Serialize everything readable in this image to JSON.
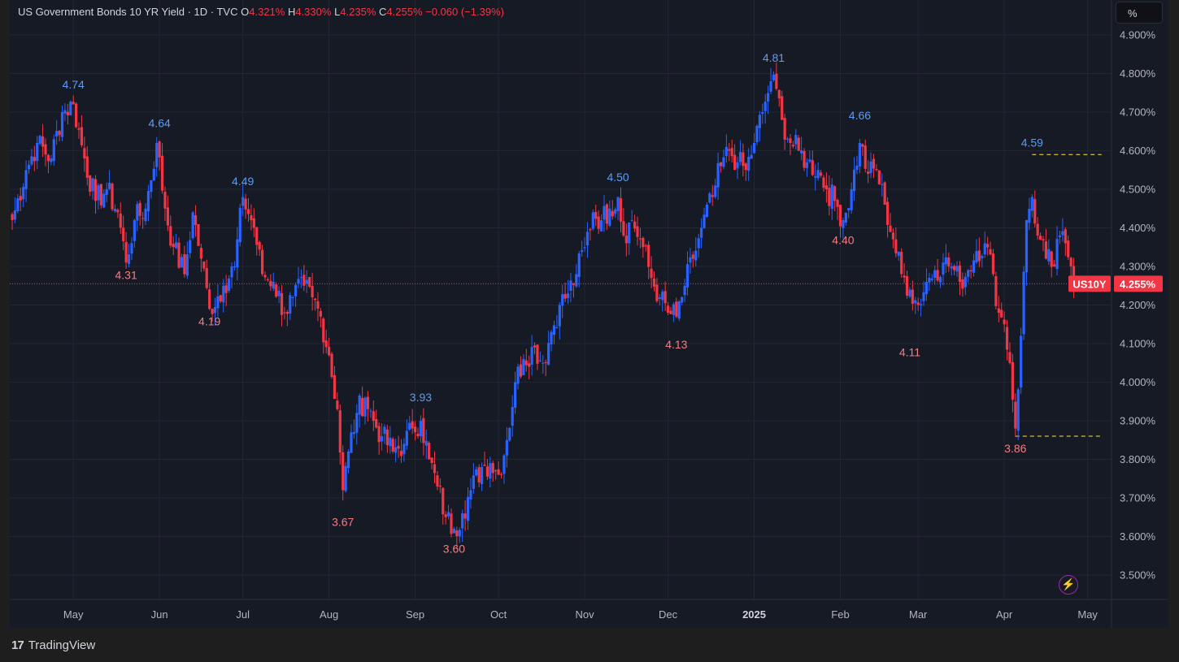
{
  "legend": {
    "title": "US Government Bonds 10 YR Yield · 1D · TVC",
    "o_label": "O",
    "o_value": "4.321%",
    "h_label": "H",
    "h_value": "4.330%",
    "l_label": "L",
    "l_value": "4.235%",
    "c_label": "C",
    "c_value": "4.255%",
    "change": "−0.060 (−1.39%)"
  },
  "unit_button": "%",
  "brand": {
    "name": "TradingView",
    "mark": "17"
  },
  "bolt_icon": "lightning-icon",
  "colors": {
    "up": "#2962ff",
    "down": "#f23645",
    "background": "#161a25",
    "grid": "#232632",
    "text": "#b2b5be",
    "dashed": "#ffeb3b"
  },
  "chart_data": {
    "type": "candlestick",
    "symbol": "US10Y",
    "last_price": "4.255%",
    "last_value": 4.255,
    "ylim": [
      3.45,
      4.95
    ],
    "y_ticks": [
      "4.900%",
      "4.800%",
      "4.700%",
      "4.600%",
      "4.500%",
      "4.400%",
      "4.300%",
      "4.200%",
      "4.100%",
      "4.000%",
      "3.900%",
      "3.800%",
      "3.700%",
      "3.600%",
      "3.500%"
    ],
    "y_tick_values": [
      4.9,
      4.8,
      4.7,
      4.6,
      4.5,
      4.4,
      4.3,
      4.2,
      4.1,
      4.0,
      3.9,
      3.8,
      3.7,
      3.6,
      3.5
    ],
    "x_ticks": [
      {
        "label": "May",
        "day": 22
      },
      {
        "label": "Jun",
        "day": 53
      },
      {
        "label": "Jul",
        "day": 83
      },
      {
        "label": "Aug",
        "day": 114
      },
      {
        "label": "Sep",
        "day": 145
      },
      {
        "label": "Oct",
        "day": 175
      },
      {
        "label": "Nov",
        "day": 206
      },
      {
        "label": "Dec",
        "day": 236
      },
      {
        "label": "2025",
        "day": 267,
        "bold": true
      },
      {
        "label": "Feb",
        "day": 298
      },
      {
        "label": "Mar",
        "day": 326
      },
      {
        "label": "Apr",
        "day": 357
      },
      {
        "label": "May",
        "day": 387
      }
    ],
    "x_range": [
      0,
      397
    ],
    "anchors": [
      [
        0,
        4.42
      ],
      [
        5,
        4.55
      ],
      [
        9,
        4.62
      ],
      [
        14,
        4.58
      ],
      [
        18,
        4.7
      ],
      [
        22,
        4.72
      ],
      [
        26,
        4.58
      ],
      [
        30,
        4.47
      ],
      [
        34,
        4.5
      ],
      [
        38,
        4.44
      ],
      [
        41,
        4.31
      ],
      [
        44,
        4.42
      ],
      [
        48,
        4.45
      ],
      [
        52,
        4.62
      ],
      [
        55,
        4.45
      ],
      [
        58,
        4.35
      ],
      [
        62,
        4.28
      ],
      [
        65,
        4.44
      ],
      [
        68,
        4.32
      ],
      [
        71,
        4.19
      ],
      [
        76,
        4.25
      ],
      [
        80,
        4.3
      ],
      [
        83,
        4.48
      ],
      [
        87,
        4.4
      ],
      [
        90,
        4.28
      ],
      [
        94,
        4.26
      ],
      [
        98,
        4.18
      ],
      [
        101,
        4.22
      ],
      [
        105,
        4.25
      ],
      [
        108,
        4.22
      ],
      [
        111,
        4.17
      ],
      [
        114,
        4.07
      ],
      [
        117,
        3.93
      ],
      [
        119,
        3.72
      ],
      [
        121,
        3.82
      ],
      [
        124,
        3.92
      ],
      [
        127,
        3.96
      ],
      [
        130,
        3.9
      ],
      [
        133,
        3.86
      ],
      [
        137,
        3.82
      ],
      [
        141,
        3.84
      ],
      [
        144,
        3.88
      ],
      [
        147,
        3.9
      ],
      [
        150,
        3.8
      ],
      [
        153,
        3.73
      ],
      [
        156,
        3.65
      ],
      [
        159,
        3.62
      ],
      [
        162,
        3.66
      ],
      [
        165,
        3.72
      ],
      [
        169,
        3.78
      ],
      [
        172,
        3.79
      ],
      [
        175,
        3.76
      ],
      [
        178,
        3.85
      ],
      [
        181,
        4.0
      ],
      [
        184,
        4.06
      ],
      [
        188,
        4.09
      ],
      [
        191,
        4.05
      ],
      [
        194,
        4.13
      ],
      [
        197,
        4.2
      ],
      [
        200,
        4.23
      ],
      [
        203,
        4.28
      ],
      [
        206,
        4.35
      ],
      [
        209,
        4.44
      ],
      [
        212,
        4.42
      ],
      [
        215,
        4.45
      ],
      [
        218,
        4.48
      ],
      [
        220,
        4.38
      ],
      [
        223,
        4.42
      ],
      [
        227,
        4.35
      ],
      [
        230,
        4.27
      ],
      [
        233,
        4.22
      ],
      [
        236,
        4.18
      ],
      [
        239,
        4.17
      ],
      [
        242,
        4.25
      ],
      [
        245,
        4.32
      ],
      [
        248,
        4.4
      ],
      [
        252,
        4.48
      ],
      [
        255,
        4.56
      ],
      [
        258,
        4.6
      ],
      [
        261,
        4.57
      ],
      [
        264,
        4.55
      ],
      [
        267,
        4.62
      ],
      [
        270,
        4.7
      ],
      [
        273,
        4.78
      ],
      [
        275,
        4.76
      ],
      [
        277,
        4.68
      ],
      [
        280,
        4.62
      ],
      [
        283,
        4.6
      ],
      [
        286,
        4.57
      ],
      [
        290,
        4.55
      ],
      [
        293,
        4.5
      ],
      [
        296,
        4.47
      ],
      [
        299,
        4.42
      ],
      [
        302,
        4.5
      ],
      [
        305,
        4.62
      ],
      [
        308,
        4.54
      ],
      [
        311,
        4.55
      ],
      [
        314,
        4.46
      ],
      [
        317,
        4.37
      ],
      [
        320,
        4.28
      ],
      [
        323,
        4.24
      ],
      [
        326,
        4.2
      ],
      [
        329,
        4.26
      ],
      [
        332,
        4.29
      ],
      [
        335,
        4.31
      ],
      [
        338,
        4.3
      ],
      [
        341,
        4.26
      ],
      [
        344,
        4.29
      ],
      [
        347,
        4.34
      ],
      [
        350,
        4.36
      ],
      [
        353,
        4.28
      ],
      [
        355,
        4.18
      ],
      [
        357,
        4.15
      ],
      [
        359,
        4.05
      ],
      [
        361,
        3.88
      ],
      [
        363,
        4.12
      ],
      [
        365,
        4.42
      ],
      [
        367,
        4.48
      ],
      [
        369,
        4.38
      ],
      [
        372,
        4.32
      ],
      [
        375,
        4.3
      ],
      [
        377,
        4.38
      ],
      [
        379,
        4.36
      ],
      [
        381,
        4.3
      ],
      [
        383,
        4.255
      ]
    ],
    "peaks": [
      {
        "label": "4.74",
        "day": 22,
        "value": 4.74,
        "kind": "high"
      },
      {
        "label": "4.64",
        "day": 53,
        "value": 4.64,
        "kind": "high"
      },
      {
        "label": "4.49",
        "day": 83,
        "value": 4.49,
        "kind": "high"
      },
      {
        "label": "3.93",
        "day": 147,
        "value": 3.93,
        "kind": "high"
      },
      {
        "label": "4.50",
        "day": 218,
        "value": 4.5,
        "kind": "high"
      },
      {
        "label": "4.81",
        "day": 274,
        "value": 4.81,
        "kind": "high"
      },
      {
        "label": "4.66",
        "day": 305,
        "value": 4.66,
        "kind": "high"
      },
      {
        "label": "4.59",
        "day": 367,
        "value": 4.59,
        "kind": "high"
      },
      {
        "label": "4.31",
        "day": 41,
        "value": 4.31,
        "kind": "low"
      },
      {
        "label": "4.19",
        "day": 71,
        "value": 4.19,
        "kind": "low"
      },
      {
        "label": "3.67",
        "day": 119,
        "value": 3.67,
        "kind": "low"
      },
      {
        "label": "3.60",
        "day": 159,
        "value": 3.6,
        "kind": "low"
      },
      {
        "label": "4.13",
        "day": 239,
        "value": 4.13,
        "kind": "low"
      },
      {
        "label": "4.40",
        "day": 299,
        "value": 4.4,
        "kind": "low"
      },
      {
        "label": "4.11",
        "day": 323,
        "value": 4.11,
        "kind": "low"
      },
      {
        "label": "3.86",
        "day": 361,
        "value": 3.86,
        "kind": "low"
      }
    ],
    "dashed_levels": [
      {
        "value": 4.59,
        "from_day": 367,
        "to_day": 392
      },
      {
        "value": 3.86,
        "from_day": 361,
        "to_day": 392
      }
    ]
  }
}
